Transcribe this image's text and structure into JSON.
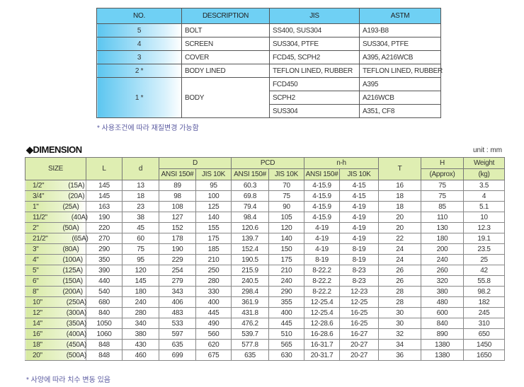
{
  "materials": {
    "headers": [
      "NO.",
      "DESCRIPTION",
      "JIS",
      "ASTM"
    ],
    "rows": [
      {
        "no": "5",
        "desc": "BOLT",
        "jis": "SS400, SUS304",
        "astm": "A193-B8"
      },
      {
        "no": "4",
        "desc": "SCREEN",
        "jis": "SUS304, PTFE",
        "astm": "SUS304, PTFE"
      },
      {
        "no": "3",
        "desc": "COVER",
        "jis": "FCD45, SCPH2",
        "astm": "A395, A216WCB"
      },
      {
        "no": "2 *",
        "desc": "BODY LINED",
        "jis": "TEFLON LINED, RUBBER",
        "astm": "TEFLON LINED, RUBBER"
      }
    ],
    "body": {
      "no": "1 *",
      "desc": "BODY",
      "sub": [
        {
          "jis": "FCD450",
          "astm": "A395"
        },
        {
          "jis": "SCPH2",
          "astm": "A216WCB"
        },
        {
          "jis": "SUS304",
          "astm": "A351, CF8"
        }
      ]
    },
    "note": "* 사용조건에 따라 재질변경 가능함"
  },
  "dimension": {
    "title": "◆DIMENSION",
    "unit": "unit : mm",
    "headers": {
      "size": "SIZE",
      "L": "L",
      "d": "d",
      "D": "D",
      "PCD": "PCD",
      "nh": "n-h",
      "T": "T",
      "H": "H",
      "H_sub": "(Approx)",
      "W": "Weight",
      "W_sub": "(kg)",
      "ansi": "ANSI 150#",
      "jis": "JIS 10K"
    },
    "rows": [
      [
        "1/2\"",
        "(15A)",
        "145",
        "13",
        "89",
        "95",
        "60.3",
        "70",
        "4-15.9",
        "4-15",
        "16",
        "75",
        "3.5"
      ],
      [
        "3/4\"",
        "(20A)",
        "145",
        "18",
        "98",
        "100",
        "69.8",
        "75",
        "4-15.9",
        "4-15",
        "18",
        "75",
        "4"
      ],
      [
        "1\"",
        "(25A)",
        "163",
        "23",
        "108",
        "125",
        "79.4",
        "90",
        "4-15.9",
        "4-19",
        "18",
        "85",
        "5.1"
      ],
      [
        "11/2\"",
        "(40A)",
        "190",
        "38",
        "127",
        "140",
        "98.4",
        "105",
        "4-15.9",
        "4-19",
        "20",
        "110",
        "10"
      ],
      [
        "2\"",
        "(50A)",
        "220",
        "45",
        "152",
        "155",
        "120.6",
        "120",
        "4-19",
        "4-19",
        "20",
        "130",
        "12.3"
      ],
      [
        "21/2\"",
        "(65A)",
        "270",
        "60",
        "178",
        "175",
        "139.7",
        "140",
        "4-19",
        "4-19",
        "22",
        "180",
        "19.1"
      ],
      [
        "3\"",
        "(80A)",
        "290",
        "75",
        "190",
        "185",
        "152.4",
        "150",
        "4-19",
        "8-19",
        "24",
        "200",
        "23.5"
      ],
      [
        "4\"",
        "(100A)",
        "350",
        "95",
        "229",
        "210",
        "190.5",
        "175",
        "8-19",
        "8-19",
        "24",
        "240",
        "25"
      ],
      [
        "5\"",
        "(125A)",
        "390",
        "120",
        "254",
        "250",
        "215.9",
        "210",
        "8-22.2",
        "8-23",
        "26",
        "260",
        "42"
      ],
      [
        "6\"",
        "(150A)",
        "440",
        "145",
        "279",
        "280",
        "240.5",
        "240",
        "8-22.2",
        "8-23",
        "26",
        "320",
        "55.8"
      ],
      [
        "8\"",
        "(200A)",
        "540",
        "180",
        "343",
        "330",
        "298.4",
        "290",
        "8-22.2",
        "12-23",
        "28",
        "380",
        "98.2"
      ],
      [
        "10\"",
        "(250A)",
        "680",
        "240",
        "406",
        "400",
        "361.9",
        "355",
        "12-25.4",
        "12-25",
        "28",
        "480",
        "182"
      ],
      [
        "12\"",
        "(300A)",
        "840",
        "280",
        "483",
        "445",
        "431.8",
        "400",
        "12-25.4",
        "16-25",
        "30",
        "600",
        "245"
      ],
      [
        "14\"",
        "(350A)",
        "1050",
        "340",
        "533",
        "490",
        "476.2",
        "445",
        "12-28.6",
        "16-25",
        "30",
        "840",
        "310"
      ],
      [
        "16\"",
        "(400A)",
        "1060",
        "380",
        "597",
        "560",
        "539.7",
        "510",
        "16-28.6",
        "16-27",
        "32",
        "890",
        "650"
      ],
      [
        "18\"",
        "(450A)",
        "848",
        "430",
        "635",
        "620",
        "577.8",
        "565",
        "16-31.7",
        "20-27",
        "34",
        "1380",
        "1450"
      ],
      [
        "20\"",
        "(500A)",
        "848",
        "460",
        "699",
        "675",
        "635",
        "630",
        "20-31.7",
        "20-27",
        "36",
        "1380",
        "1650"
      ]
    ],
    "note": "* 사양에 따라 치수 변동 있음"
  }
}
